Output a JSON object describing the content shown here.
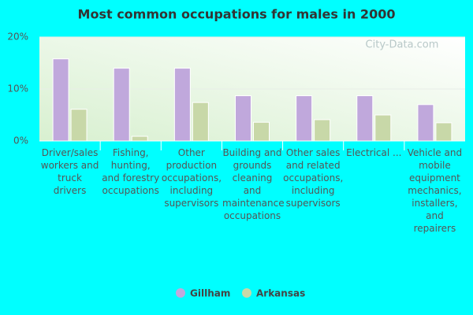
{
  "chart_data": {
    "type": "bar",
    "title": "Most common occupations for males in 2000",
    "watermark": "City-Data.com",
    "categories": [
      "Driver/sales workers and truck drivers",
      "Fishing, hunting, and forestry occupations",
      "Other production occupations, including supervisors",
      "Building and grounds cleaning and maintenance occupations",
      "Other sales and related occupations, including supervisors",
      "Electrical ...",
      "Vehicle and mobile equipment mechanics, installers, and repairers"
    ],
    "series": [
      {
        "name": "Gillham",
        "color": "#c0a8dc",
        "values": [
          15.8,
          14.0,
          14.0,
          8.7,
          8.7,
          8.7,
          7.0
        ]
      },
      {
        "name": "Arkansas",
        "color": "#c8d8a8",
        "values": [
          6.1,
          0.9,
          7.4,
          3.6,
          4.1,
          5.0,
          3.5
        ]
      }
    ],
    "ylim": [
      0,
      20
    ],
    "yticks": [
      {
        "value": 0,
        "label": "0%"
      },
      {
        "value": 10,
        "label": "10%"
      },
      {
        "value": 20,
        "label": "20%"
      }
    ],
    "grid": true
  }
}
